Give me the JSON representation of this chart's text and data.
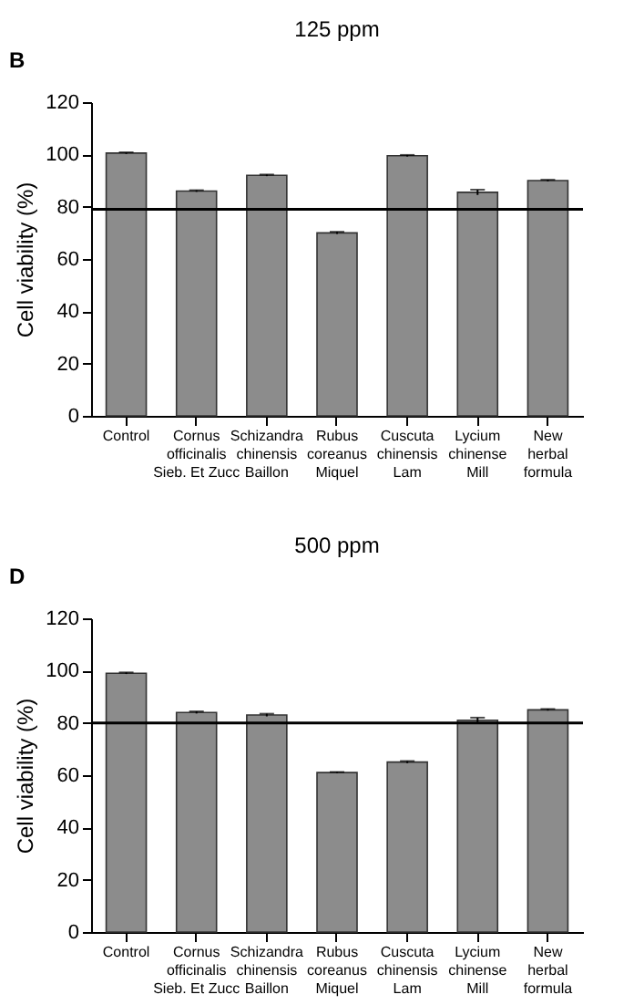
{
  "chart_data": [
    {
      "type": "bar",
      "title": "125 ppm",
      "ylabel": "Cell viability (%)",
      "annotations": [
        "B"
      ],
      "categories": [
        "Control",
        "Cornus\nofficinalis\nSieb. Et Zucc",
        "Schizandra\nchinensis\nBaillon",
        "Rubus\ncoreanus\nMiquel",
        "Cuscuta\nchinensis\nLam",
        "Lycium\nchinense\nMill",
        "New\nherbal\nformula"
      ],
      "values": [
        100.5,
        86,
        92,
        70,
        99.5,
        85.5,
        90
      ],
      "errors": [
        0.3,
        0.3,
        0.3,
        0.4,
        0.3,
        1,
        0.3
      ],
      "color": "#8c8c8c",
      "ylim": [
        0,
        120
      ],
      "yticks": [
        0,
        20,
        40,
        60,
        80,
        100,
        120
      ],
      "grid": false,
      "ref_lines": [
        {
          "axis": "y",
          "value": 79,
          "color": "#000000"
        }
      ]
    },
    {
      "type": "bar",
      "title": "500 ppm",
      "ylabel": "Cell viability (%)",
      "annotations": [
        "D"
      ],
      "categories": [
        "Control",
        "Cornus\nofficinalis\nSieb. Et Zucc",
        "Schizandra\nchinensis\nBaillon",
        "Rubus\ncoreanus\nMiquel",
        "Cuscuta\nchinensis\nLam",
        "Lycium\nchinense\nMill",
        "New\nherbal\nformula"
      ],
      "values": [
        99,
        84,
        83,
        61,
        65,
        81,
        85
      ],
      "errors": [
        0.3,
        0.4,
        0.5,
        0.2,
        0.4,
        1,
        0.3
      ],
      "color": "#8c8c8c",
      "ylim": [
        0,
        120
      ],
      "yticks": [
        0,
        20,
        40,
        60,
        80,
        100,
        120
      ],
      "grid": false,
      "ref_lines": [
        {
          "axis": "y",
          "value": 80,
          "color": "#000000"
        }
      ]
    }
  ]
}
